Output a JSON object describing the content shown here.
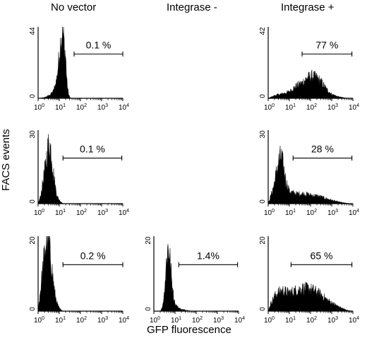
{
  "column_titles": [
    "No vector",
    "Integrase -",
    "Integrase +"
  ],
  "y_axis_title": "FACS events",
  "x_axis_title": "GFP fluorescence",
  "chart_data": {
    "type": "histogram-grid",
    "x_scale": "log",
    "x_ticks": [
      {
        "base": "10",
        "exp": "0"
      },
      {
        "base": "10",
        "exp": "1"
      },
      {
        "base": "10",
        "exp": "2"
      },
      {
        "base": "10",
        "exp": "3"
      },
      {
        "base": "10",
        "exp": "4"
      }
    ],
    "panels": [
      {
        "id": "r1c1",
        "row": 1,
        "col": 1,
        "ymax": 44,
        "ymax_label": "44",
        "ymin_label": "0",
        "gate_label": "0.1 %",
        "gate_percent": 0.1,
        "gate_range": [
          50,
          10000
        ],
        "profile": [
          [
            1,
            0
          ],
          [
            2,
            0.5
          ],
          [
            3.5,
            2
          ],
          [
            5,
            4
          ],
          [
            6.5,
            8
          ],
          [
            8,
            14
          ],
          [
            9.5,
            24
          ],
          [
            11,
            33
          ],
          [
            12.5,
            38
          ],
          [
            14,
            41
          ],
          [
            16,
            38
          ],
          [
            18,
            30
          ],
          [
            20,
            25
          ],
          [
            23,
            10
          ],
          [
            27,
            3
          ],
          [
            32,
            0.5
          ],
          [
            36,
            0
          ]
        ]
      },
      {
        "id": "r1c3",
        "row": 1,
        "col": 3,
        "ymax": 42,
        "ymax_label": "42",
        "ymin_label": "0",
        "gate_label": "77 %",
        "gate_percent": 77,
        "gate_range": [
          40,
          9000
        ],
        "profile": [
          [
            1,
            0
          ],
          [
            1.5,
            1
          ],
          [
            2.5,
            2
          ],
          [
            4,
            2.5
          ],
          [
            6,
            3
          ],
          [
            10,
            4
          ],
          [
            20,
            7
          ],
          [
            40,
            9
          ],
          [
            70,
            12
          ],
          [
            120,
            13
          ],
          [
            200,
            12
          ],
          [
            350,
            9
          ],
          [
            600,
            5
          ],
          [
            1000,
            2.5
          ],
          [
            2000,
            1
          ],
          [
            4000,
            0.3
          ],
          [
            8000,
            0
          ]
        ]
      },
      {
        "id": "r2c1",
        "row": 2,
        "col": 1,
        "ymax": 30,
        "ymax_label": "30",
        "ymin_label": "0",
        "gate_label": "0.1 %",
        "gate_percent": 0.1,
        "gate_range": [
          15,
          9000
        ],
        "profile": [
          [
            1,
            0
          ],
          [
            1.3,
            3
          ],
          [
            1.7,
            9
          ],
          [
            2.2,
            15
          ],
          [
            2.8,
            22
          ],
          [
            3.4,
            25
          ],
          [
            4.2,
            21
          ],
          [
            5.2,
            13
          ],
          [
            6.5,
            7
          ],
          [
            8,
            3
          ],
          [
            10,
            1.5
          ],
          [
            13,
            0.5
          ],
          [
            16,
            0
          ]
        ]
      },
      {
        "id": "r2c3",
        "row": 2,
        "col": 3,
        "ymax": 30,
        "ymax_label": "30",
        "ymin_label": "0",
        "gate_label": "28 %",
        "gate_percent": 28,
        "gate_range": [
          15,
          9000
        ],
        "profile": [
          [
            1,
            0
          ],
          [
            1.3,
            3
          ],
          [
            1.8,
            7
          ],
          [
            2.5,
            13
          ],
          [
            3.3,
            18
          ],
          [
            4.2,
            19
          ],
          [
            5.5,
            14
          ],
          [
            7,
            9
          ],
          [
            10,
            5
          ],
          [
            20,
            4
          ],
          [
            50,
            4
          ],
          [
            100,
            3.5
          ],
          [
            250,
            3
          ],
          [
            600,
            2
          ],
          [
            1500,
            1
          ],
          [
            4000,
            0.3
          ],
          [
            8000,
            0
          ]
        ]
      },
      {
        "id": "r3c1",
        "row": 3,
        "col": 1,
        "ymax": 20,
        "ymax_label": "20",
        "ymin_label": "0",
        "gate_label": "0.2 %",
        "gate_percent": 0.2,
        "gate_range": [
          15,
          10000
        ],
        "profile": [
          [
            1,
            0
          ],
          [
            1.2,
            4
          ],
          [
            1.5,
            9
          ],
          [
            1.9,
            14
          ],
          [
            2.3,
            18
          ],
          [
            2.8,
            19
          ],
          [
            3.4,
            17
          ],
          [
            4.2,
            13
          ],
          [
            5.2,
            8
          ],
          [
            6.5,
            4
          ],
          [
            8,
            2
          ],
          [
            10,
            0.8
          ],
          [
            13,
            0.2
          ],
          [
            16,
            0
          ]
        ]
      },
      {
        "id": "r3c2",
        "row": 3,
        "col": 2,
        "ymax": 20,
        "ymax_label": "20",
        "ymin_label": "0",
        "gate_label": "1.4%",
        "gate_percent": 1.4,
        "gate_range": [
          15,
          9000
        ],
        "profile": [
          [
            2,
            0
          ],
          [
            2.5,
            1
          ],
          [
            3,
            4
          ],
          [
            3.5,
            9
          ],
          [
            4,
            14
          ],
          [
            4.6,
            17
          ],
          [
            5.3,
            16
          ],
          [
            6,
            13
          ],
          [
            7,
            8
          ],
          [
            8.5,
            4
          ],
          [
            10,
            2
          ],
          [
            14,
            1
          ],
          [
            20,
            0.5
          ],
          [
            40,
            0.2
          ],
          [
            60,
            0
          ]
        ]
      },
      {
        "id": "r3c3",
        "row": 3,
        "col": 3,
        "ymax": 20,
        "ymax_label": "20",
        "ymin_label": "0",
        "gate_label": "65 %",
        "gate_percent": 65,
        "gate_range": [
          12,
          9000
        ],
        "profile": [
          [
            1,
            0
          ],
          [
            1.3,
            2
          ],
          [
            2,
            4
          ],
          [
            3,
            5
          ],
          [
            5,
            5.5
          ],
          [
            8,
            5
          ],
          [
            12,
            5
          ],
          [
            20,
            5.5
          ],
          [
            40,
            6
          ],
          [
            80,
            6
          ],
          [
            150,
            5.5
          ],
          [
            300,
            4.5
          ],
          [
            600,
            3
          ],
          [
            1200,
            2
          ],
          [
            2500,
            1
          ],
          [
            5000,
            0.3
          ],
          [
            9000,
            0
          ]
        ]
      }
    ]
  }
}
